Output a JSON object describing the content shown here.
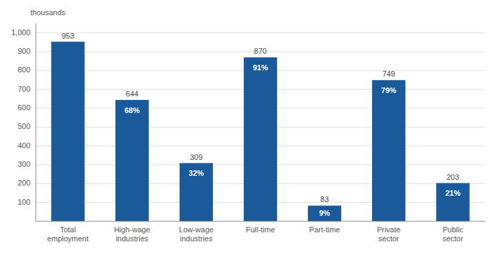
{
  "chart_data": {
    "type": "bar",
    "y_label": "thousands",
    "categories": [
      "Total\nemployment",
      "High-wage\nindustries",
      "Low-wage\nindustries",
      "Full-time",
      "Part-time",
      "Private\nsector",
      "Public\nsector"
    ],
    "values": [
      953,
      644,
      309,
      870,
      83,
      749,
      203
    ],
    "percentage_labels": [
      null,
      "68%",
      "32%",
      "91%",
      "9%",
      "79%",
      "21%"
    ],
    "color": "#1a5a9a",
    "ylim": [
      0,
      1050
    ],
    "yticks": [
      100,
      200,
      300,
      400,
      500,
      600,
      700,
      800,
      900,
      {
        "value": 1000,
        "label": "1,000"
      }
    ],
    "grid": true,
    "data_labels": true
  }
}
